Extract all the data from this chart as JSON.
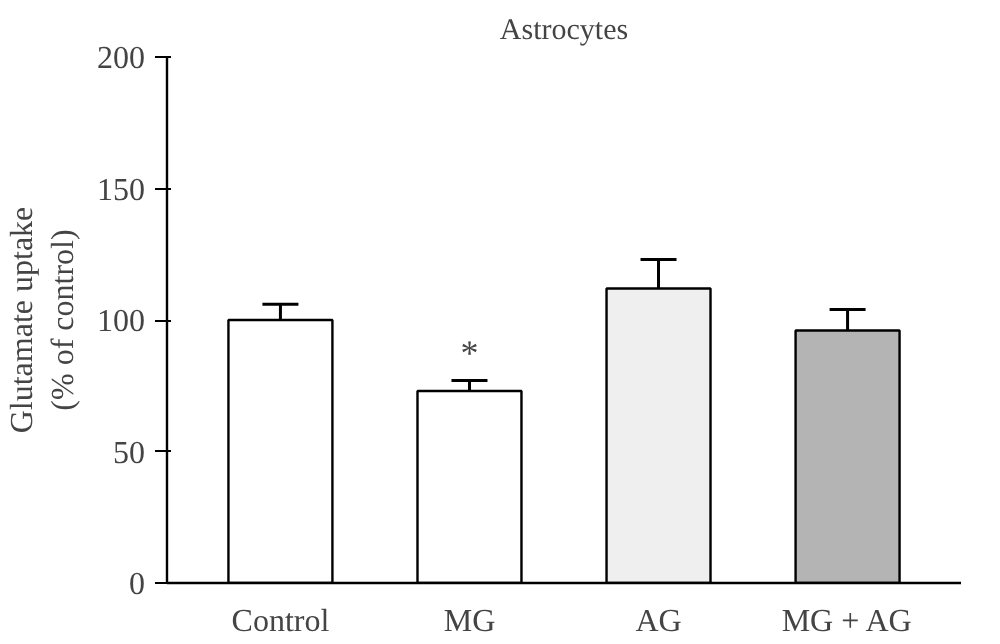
{
  "chart_data": {
    "type": "bar",
    "title": "Astrocytes",
    "ylabel": "Glutamate uptake\n(% of control)",
    "categories": [
      "Control",
      "MG",
      "AG",
      "MG + AG"
    ],
    "values": [
      100,
      73,
      112,
      96
    ],
    "errors": [
      6,
      4,
      11,
      8
    ],
    "colors": [
      "#ffffff",
      "#ffffff",
      "#efefef",
      "#b4b4b4"
    ],
    "ylim": [
      0,
      200
    ],
    "yticks": [
      0,
      50,
      100,
      150,
      200
    ],
    "grid": false,
    "annotations": [
      {
        "text": "*",
        "x": "MG",
        "y": 80
      }
    ]
  }
}
